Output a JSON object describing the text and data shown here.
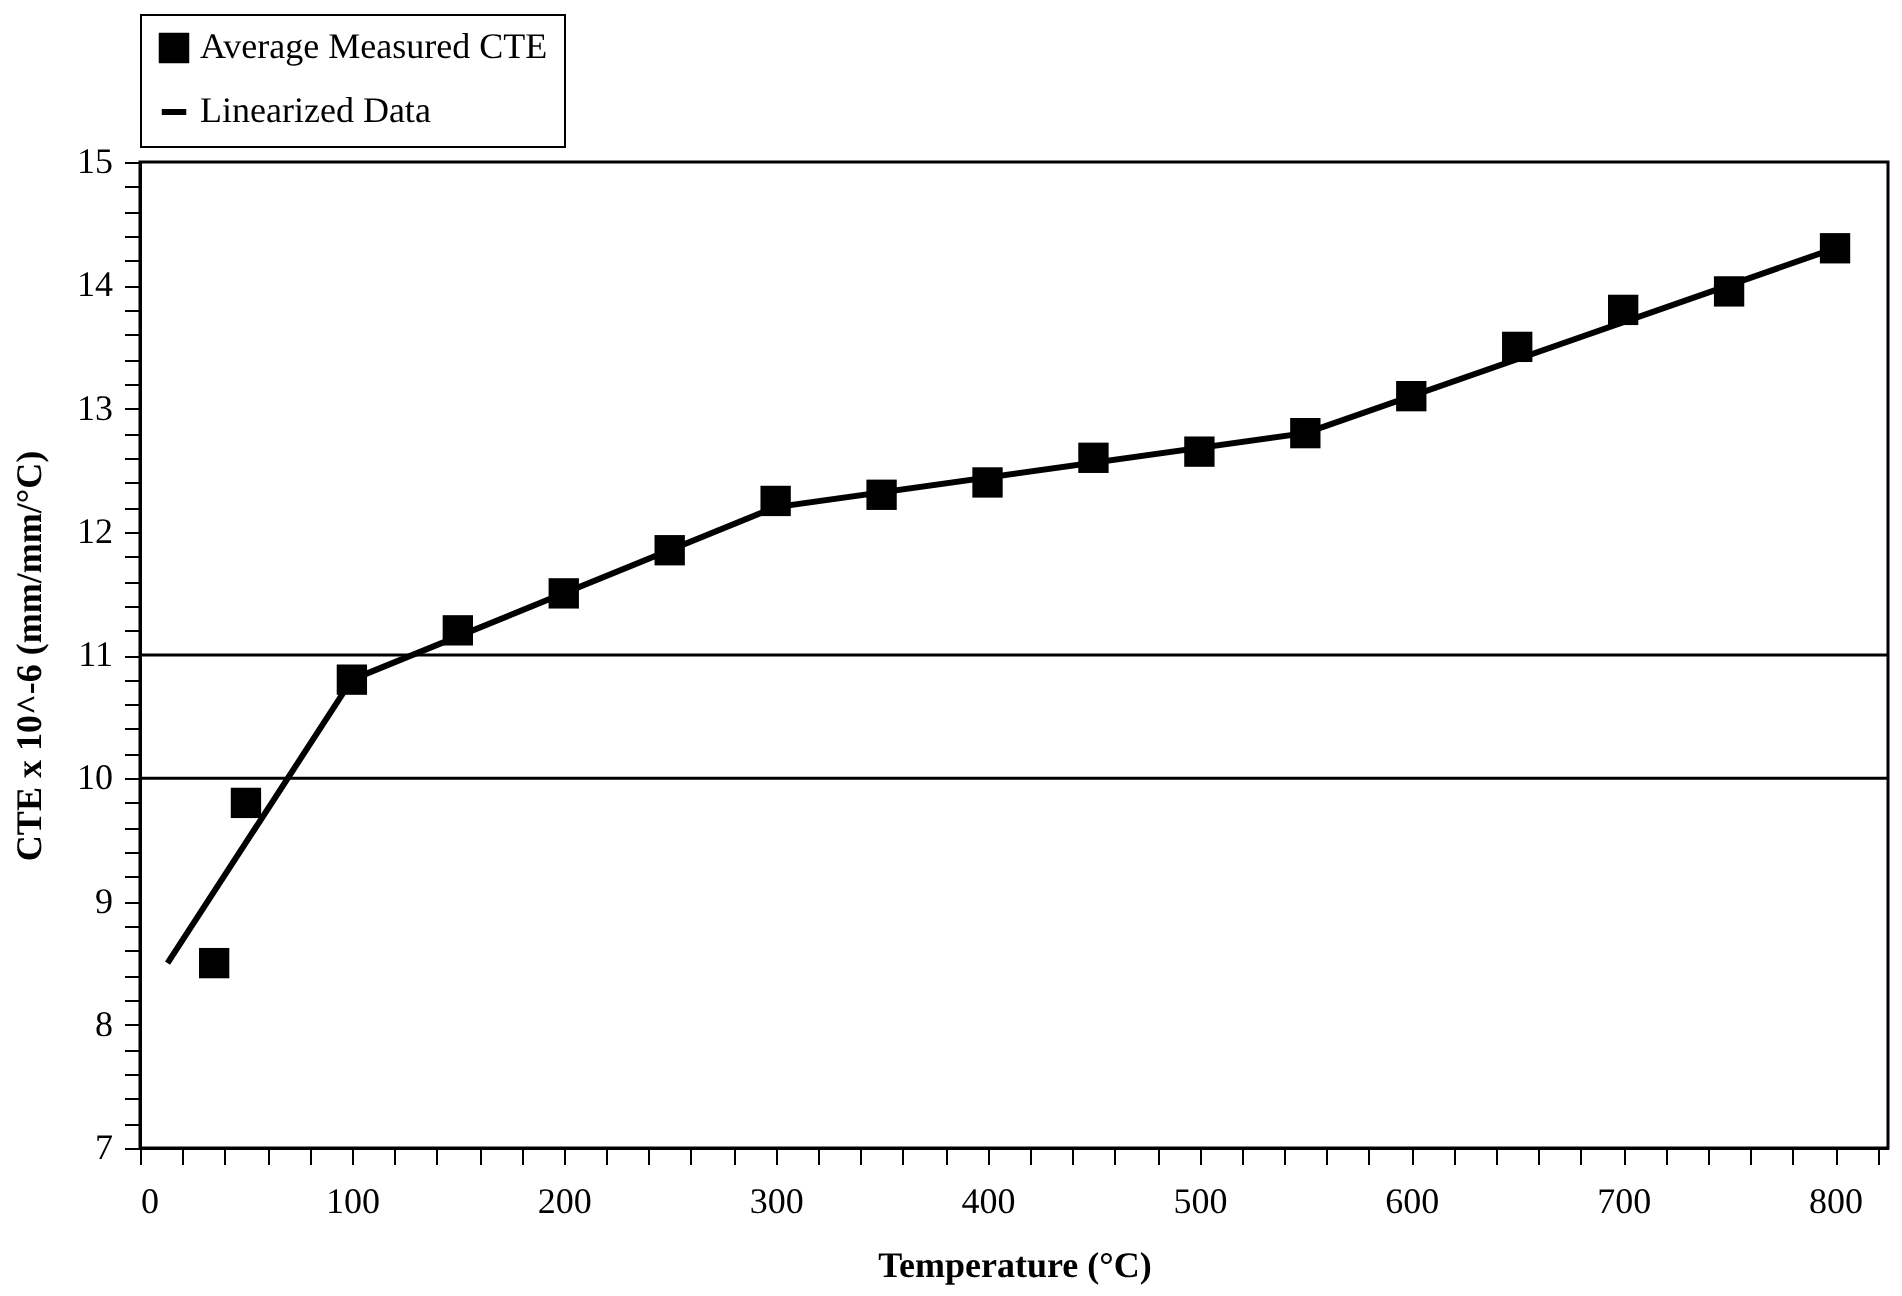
{
  "chart_data": {
    "type": "scatter",
    "xlabel": "Temperature (°C)",
    "ylabel": "CTE x 10^-6 (mm/mm/°C)",
    "xlim": [
      0,
      825
    ],
    "ylim": [
      7,
      15
    ],
    "xticks": [
      0,
      {
        "value": 20,
        "label": null
      },
      {
        "value": 40,
        "label": null
      },
      {
        "value": 60,
        "label": null
      },
      {
        "value": 80,
        "label": null
      },
      100,
      {
        "value": 120,
        "label": null
      },
      {
        "value": 140,
        "label": null
      },
      {
        "value": 160,
        "label": null
      },
      {
        "value": 180,
        "label": null
      },
      200,
      {
        "value": 220,
        "label": null
      },
      {
        "value": 240,
        "label": null
      },
      {
        "value": 260,
        "label": null
      },
      {
        "value": 280,
        "label": null
      },
      300,
      {
        "value": 320,
        "label": null
      },
      {
        "value": 340,
        "label": null
      },
      {
        "value": 360,
        "label": null
      },
      {
        "value": 380,
        "label": null
      },
      400,
      {
        "value": 420,
        "label": null
      },
      {
        "value": 440,
        "label": null
      },
      {
        "value": 460,
        "label": null
      },
      {
        "value": 480,
        "label": null
      },
      500,
      {
        "value": 520,
        "label": null
      },
      {
        "value": 540,
        "label": null
      },
      {
        "value": 560,
        "label": null
      },
      {
        "value": 580,
        "label": null
      },
      600,
      {
        "value": 620,
        "label": null
      },
      {
        "value": 640,
        "label": null
      },
      {
        "value": 660,
        "label": null
      },
      {
        "value": 680,
        "label": null
      },
      700,
      {
        "value": 720,
        "label": null
      },
      {
        "value": 740,
        "label": null
      },
      {
        "value": 760,
        "label": null
      },
      {
        "value": 780,
        "label": null
      },
      800,
      {
        "value": 820,
        "label": null
      }
    ],
    "yticks": [
      7,
      {
        "value": 7.2,
        "label": null
      },
      {
        "value": 7.4,
        "label": null
      },
      {
        "value": 7.6,
        "label": null
      },
      {
        "value": 7.8,
        "label": null
      },
      8,
      {
        "value": 8.2,
        "label": null
      },
      {
        "value": 8.4,
        "label": null
      },
      {
        "value": 8.6,
        "label": null
      },
      {
        "value": 8.8,
        "label": null
      },
      9,
      {
        "value": 9.2,
        "label": null
      },
      {
        "value": 9.4,
        "label": null
      },
      {
        "value": 9.6,
        "label": null
      },
      {
        "value": 9.8,
        "label": null
      },
      10,
      {
        "value": 10.2,
        "label": null
      },
      {
        "value": 10.4,
        "label": null
      },
      {
        "value": 10.6,
        "label": null
      },
      {
        "value": 10.8,
        "label": null
      },
      11,
      {
        "value": 11.2,
        "label": null
      },
      {
        "value": 11.4,
        "label": null
      },
      {
        "value": 11.6,
        "label": null
      },
      {
        "value": 11.8,
        "label": null
      },
      12,
      {
        "value": 12.2,
        "label": null
      },
      {
        "value": 12.4,
        "label": null
      },
      {
        "value": 12.6,
        "label": null
      },
      {
        "value": 12.8,
        "label": null
      },
      13,
      {
        "value": 13.2,
        "label": null
      },
      {
        "value": 13.4,
        "label": null
      },
      {
        "value": 13.6,
        "label": null
      },
      {
        "value": 13.8,
        "label": null
      },
      14,
      {
        "value": 14.2,
        "label": null
      },
      {
        "value": 14.4,
        "label": null
      },
      {
        "value": 14.6,
        "label": null
      },
      {
        "value": 14.8,
        "label": null
      },
      15
    ],
    "grid": false,
    "legend": "top",
    "ref_lines": [
      {
        "axis": "y",
        "value": 10,
        "color": "#000000"
      },
      {
        "axis": "y",
        "value": 11,
        "color": "#000000"
      }
    ],
    "series": [
      {
        "name": "Average Measured CTE",
        "type": "scatter",
        "marker": "square",
        "color": "#000000",
        "x": [
          35,
          50,
          100,
          150,
          200,
          250,
          300,
          350,
          400,
          450,
          500,
          550,
          600,
          650,
          700,
          750,
          800
        ],
        "values": [
          8.5,
          9.8,
          10.8,
          11.2,
          11.5,
          11.85,
          12.25,
          12.3,
          12.4,
          12.6,
          12.65,
          12.8,
          13.1,
          13.5,
          13.8,
          13.95,
          14.3
        ]
      },
      {
        "name": "Linearized Data",
        "type": "line",
        "marker": "none",
        "line_style": "solid",
        "color": "#000000",
        "x": [
          13,
          100,
          300,
          550,
          800
        ],
        "values": [
          8.5,
          10.8,
          12.2,
          12.8,
          14.3
        ]
      }
    ]
  }
}
